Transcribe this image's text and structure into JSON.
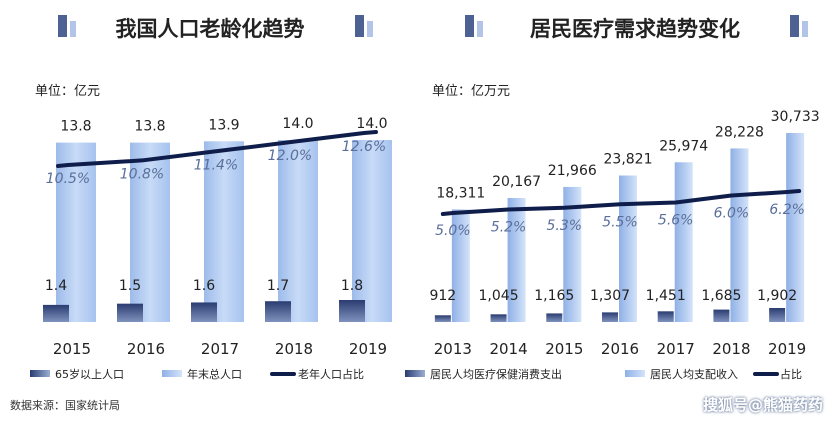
{
  "source_note": "数据来源：国家统计局",
  "watermark": "搜狐号@熊猫药药",
  "colors": {
    "title": "#222222",
    "bar_light": "#b9d0f3",
    "bar_dark": "#27386a",
    "line": "#0f1d4a",
    "pct_text": "#5a6f9a",
    "text": "#222222"
  },
  "chart_data": [
    {
      "type": "bar",
      "title": "我国人口老龄化趋势",
      "unit_label": "单位：亿元",
      "categories": [
        "2015",
        "2016",
        "2017",
        "2018",
        "2019"
      ],
      "series": [
        {
          "name": "65岁以上人口",
          "values": [
            1.4,
            1.5,
            1.6,
            1.7,
            1.8
          ],
          "labels": [
            "1.4",
            "1.5",
            "1.6",
            "1.7",
            "1.8"
          ]
        },
        {
          "name": "年末总人口",
          "values": [
            13.8,
            13.8,
            13.9,
            14.0,
            14.0
          ],
          "labels": [
            "13.8",
            "13.8",
            "13.9",
            "14.0",
            "14.0"
          ]
        },
        {
          "name": "老年人口占比",
          "type": "line",
          "values": [
            10.5,
            10.8,
            11.4,
            12.0,
            12.6
          ],
          "labels": [
            "10.5%",
            "10.8%",
            "11.4%",
            "12.0%",
            "12.6%"
          ]
        }
      ]
    },
    {
      "type": "bar",
      "title": "居民医疗需求趋势变化",
      "unit_label": "单位：亿万元",
      "categories": [
        "2013",
        "2014",
        "2015",
        "2016",
        "2017",
        "2018",
        "2019"
      ],
      "series": [
        {
          "name": "居民人均医疗保健消费支出",
          "values": [
            912,
            1045,
            1165,
            1307,
            1451,
            1685,
            1902
          ],
          "labels": [
            "912",
            "1,045",
            "1,165",
            "1,307",
            "1,451",
            "1,685",
            "1,902"
          ]
        },
        {
          "name": "居民人均支配收入",
          "values": [
            18311,
            20167,
            21966,
            23821,
            25974,
            28228,
            30733
          ],
          "labels": [
            "18,311",
            "20,167",
            "21,966",
            "23,821",
            "25,974",
            "28,228",
            "30,733"
          ]
        },
        {
          "name": "占比",
          "type": "line",
          "values": [
            5.0,
            5.2,
            5.3,
            5.5,
            5.6,
            6.0,
            6.2
          ],
          "labels": [
            "5.0%",
            "5.2%",
            "5.3%",
            "5.5%",
            "5.6%",
            "6.0%",
            "6.2%"
          ]
        }
      ]
    }
  ]
}
